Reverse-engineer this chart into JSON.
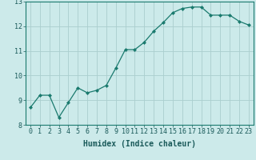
{
  "x": [
    0,
    1,
    2,
    3,
    4,
    5,
    6,
    7,
    8,
    9,
    10,
    11,
    12,
    13,
    14,
    15,
    16,
    17,
    18,
    19,
    20,
    21,
    22,
    23
  ],
  "y": [
    8.7,
    9.2,
    9.2,
    8.3,
    8.9,
    9.5,
    9.3,
    9.4,
    9.6,
    10.3,
    11.05,
    11.05,
    11.35,
    11.8,
    12.15,
    12.55,
    12.72,
    12.78,
    12.78,
    12.45,
    12.45,
    12.45,
    12.2,
    12.05
  ],
  "xlabel": "Humidex (Indice chaleur)",
  "xlim": [
    -0.5,
    23.5
  ],
  "ylim": [
    8,
    13
  ],
  "yticks": [
    8,
    9,
    10,
    11,
    12,
    13
  ],
  "xticks": [
    0,
    1,
    2,
    3,
    4,
    5,
    6,
    7,
    8,
    9,
    10,
    11,
    12,
    13,
    14,
    15,
    16,
    17,
    18,
    19,
    20,
    21,
    22,
    23
  ],
  "line_color": "#1a7a6e",
  "marker_color": "#1a7a6e",
  "bg_color": "#cceaea",
  "grid_color": "#aacece",
  "xlabel_fontsize": 7,
  "tick_fontsize": 6,
  "tick_color": "#1a5a5a"
}
